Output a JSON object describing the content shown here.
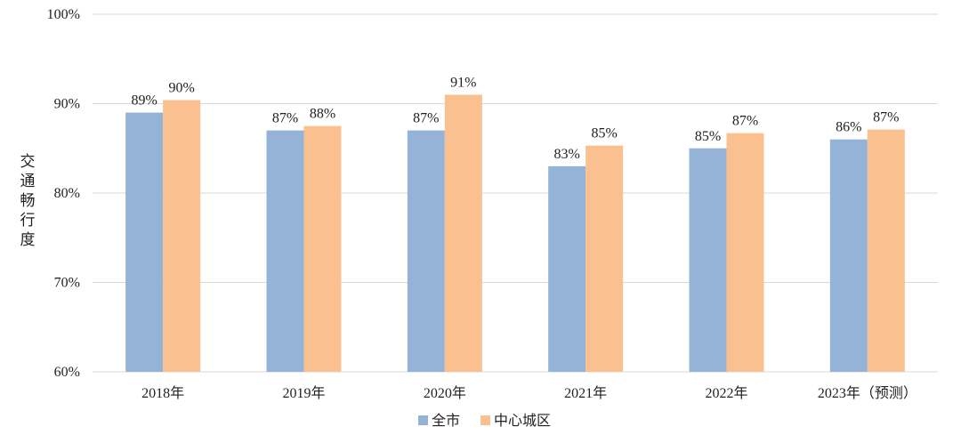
{
  "chart_data": {
    "type": "bar",
    "categories": [
      "2018年",
      "2019年",
      "2020年",
      "2021年",
      "2022年",
      "2023年（预测）"
    ],
    "series": [
      {
        "name": "全市",
        "values": [
          89,
          87,
          87,
          83,
          85,
          86
        ],
        "labels": [
          "89%",
          "87%",
          "87%",
          "83%",
          "85%",
          "86%"
        ],
        "color": "#95b3d7"
      },
      {
        "name": "中心城区",
        "values": [
          90.4,
          87.5,
          91,
          85.3,
          86.7,
          87.1
        ],
        "labels": [
          "90%",
          "88%",
          "91%",
          "85%",
          "87%",
          "87%"
        ],
        "color": "#fac090"
      }
    ],
    "ylabel": "交通畅行度",
    "ylim": [
      60,
      100
    ],
    "yticks": [
      60,
      70,
      80,
      90,
      100
    ],
    "ytick_labels": [
      "60%",
      "70%",
      "80%",
      "90%",
      "100%"
    ],
    "grid": true,
    "legend_position": "bottom-center",
    "gridline_color": "#d9d9d9"
  }
}
